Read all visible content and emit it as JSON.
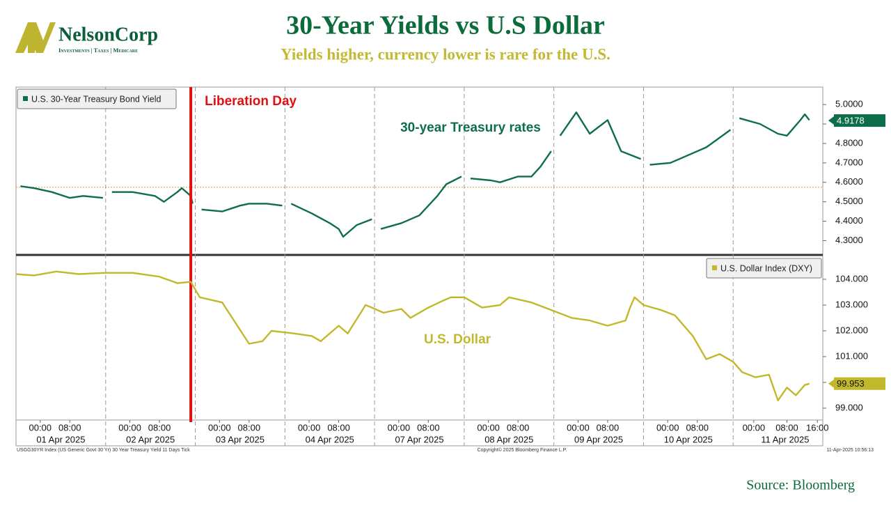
{
  "header": {
    "logo_name": "NelsonCorp",
    "logo_tagline": "Investments | Taxes | Medicare",
    "title": "30-Year Yields vs U.S Dollar",
    "subtitle": "Yields higher, currency lower is rare for the U.S."
  },
  "chart_data": [
    {
      "type": "line",
      "legend": "top-left",
      "annotation": "30-year Treasury rates",
      "event_label": "Liberation Day",
      "event_x": 1.95,
      "reference_line": 4.575,
      "reference_color": "#e0a030",
      "last_value": 4.9178,
      "xlim": [
        0,
        9
      ],
      "ylim": [
        4.23,
        5.09
      ],
      "yticks": [
        {
          "value": 4.3,
          "label": "4.3000"
        },
        {
          "value": 4.4,
          "label": "4.4000"
        },
        {
          "value": 4.5,
          "label": "4.5000"
        },
        {
          "value": 4.6,
          "label": "4.6000"
        },
        {
          "value": 4.7,
          "label": "4.7000"
        },
        {
          "value": 4.8,
          "label": "4.8000"
        },
        {
          "value": 4.9,
          "label": "4.9000"
        },
        {
          "value": 5.0,
          "label": "5.0000"
        }
      ],
      "x": [
        0.05,
        0.2,
        0.4,
        0.6,
        0.75,
        0.97,
        1.02,
        1.07,
        1.3,
        1.55,
        1.65,
        1.8,
        1.85,
        1.95,
        1.97,
        2.02,
        2.07,
        2.3,
        2.5,
        2.6,
        2.8,
        2.97,
        3.02,
        3.07,
        3.3,
        3.5,
        3.6,
        3.65,
        3.8,
        3.97,
        4.02,
        4.07,
        4.3,
        4.5,
        4.7,
        4.8,
        4.97,
        5.02,
        5.07,
        5.3,
        5.4,
        5.6,
        5.75,
        5.85,
        5.97,
        6.02,
        6.07,
        6.25,
        6.4,
        6.6,
        6.75,
        6.97,
        7.02,
        7.07,
        7.3,
        7.5,
        7.7,
        7.85,
        7.97,
        8.02,
        8.07,
        8.3,
        8.5,
        8.6,
        8.75,
        8.8,
        8.85
      ],
      "series": [
        {
          "name": "U.S. 30-Year Treasury Bond Yield",
          "color": "#0f6e4a",
          "values": [
            4.58,
            4.57,
            4.55,
            4.52,
            4.53,
            4.52,
            null,
            4.55,
            4.55,
            4.53,
            4.5,
            4.55,
            4.57,
            4.53,
            4.49,
            null,
            4.46,
            4.45,
            4.48,
            4.49,
            4.49,
            4.48,
            null,
            4.49,
            4.44,
            4.39,
            4.36,
            4.32,
            4.38,
            4.41,
            null,
            4.36,
            4.39,
            4.43,
            4.53,
            4.59,
            4.63,
            null,
            4.62,
            4.61,
            4.6,
            4.63,
            4.63,
            4.68,
            4.76,
            null,
            4.84,
            4.96,
            4.85,
            4.92,
            4.76,
            4.72,
            null,
            4.69,
            4.7,
            4.74,
            4.78,
            4.83,
            4.87,
            null,
            4.93,
            4.9,
            4.85,
            4.84,
            4.92,
            4.95,
            4.92
          ]
        }
      ]
    },
    {
      "type": "line",
      "legend": "top-right",
      "annotation": "U.S. Dollar",
      "last_value": 99.953,
      "xlim": [
        0,
        9
      ],
      "ylim": [
        98.54,
        104.89
      ],
      "yticks": [
        {
          "value": 99,
          "label": "99.000"
        },
        {
          "value": 100,
          "label": "100.000"
        },
        {
          "value": 101,
          "label": "101.000"
        },
        {
          "value": 102,
          "label": "102.000"
        },
        {
          "value": 103,
          "label": "103.000"
        },
        {
          "value": 104,
          "label": "104.000"
        }
      ],
      "day_boundaries": [
        1,
        2,
        3,
        4,
        5,
        6,
        7,
        8
      ],
      "xticks": [
        {
          "value": 0.27,
          "label": "00:00"
        },
        {
          "value": 0.6,
          "label": "08:00"
        },
        {
          "value": 1.27,
          "label": "00:00"
        },
        {
          "value": 1.6,
          "label": "08:00"
        },
        {
          "value": 2.27,
          "label": "00:00"
        },
        {
          "value": 2.6,
          "label": "08:00"
        },
        {
          "value": 3.27,
          "label": "00:00"
        },
        {
          "value": 3.6,
          "label": "08:00"
        },
        {
          "value": 4.27,
          "label": "00:00"
        },
        {
          "value": 4.6,
          "label": "08:00"
        },
        {
          "value": 5.27,
          "label": "00:00"
        },
        {
          "value": 5.6,
          "label": "08:00"
        },
        {
          "value": 6.27,
          "label": "00:00"
        },
        {
          "value": 6.6,
          "label": "08:00"
        },
        {
          "value": 7.27,
          "label": "00:00"
        },
        {
          "value": 7.6,
          "label": "08:00"
        },
        {
          "value": 8.23,
          "label": "00:00"
        },
        {
          "value": 8.6,
          "label": "08:00"
        },
        {
          "value": 8.94,
          "label": "16:00"
        }
      ],
      "day_labels": [
        {
          "value": 0.5,
          "label": "01 Apr 2025"
        },
        {
          "value": 1.5,
          "label": "02 Apr 2025"
        },
        {
          "value": 2.5,
          "label": "03 Apr 2025"
        },
        {
          "value": 3.5,
          "label": "04 Apr 2025"
        },
        {
          "value": 4.5,
          "label": "07 Apr 2025"
        },
        {
          "value": 5.5,
          "label": "08 Apr 2025"
        },
        {
          "value": 6.5,
          "label": "09 Apr 2025"
        },
        {
          "value": 7.5,
          "label": "10 Apr 2025"
        },
        {
          "value": 8.58,
          "label": "11 Apr 2025"
        }
      ],
      "x": [
        0.0,
        0.2,
        0.45,
        0.7,
        1.0,
        1.3,
        1.6,
        1.8,
        1.95,
        2.05,
        2.3,
        2.45,
        2.6,
        2.75,
        2.85,
        3.1,
        3.3,
        3.4,
        3.6,
        3.7,
        3.9,
        3.97,
        4.1,
        4.3,
        4.4,
        4.6,
        4.75,
        4.85,
        5.0,
        5.2,
        5.4,
        5.5,
        5.75,
        5.9,
        6.2,
        6.4,
        6.6,
        6.8,
        6.85,
        6.9,
        7.0,
        7.2,
        7.35,
        7.55,
        7.7,
        7.85,
        8.0,
        8.1,
        8.25,
        8.4,
        8.5,
        8.6,
        8.7,
        8.8,
        8.85
      ],
      "series": [
        {
          "name": "U.S. Dollar Index (DXY)",
          "color": "#c2b82b",
          "values": [
            104.2,
            104.15,
            104.3,
            104.2,
            104.25,
            104.25,
            104.1,
            103.85,
            103.9,
            103.3,
            103.1,
            102.3,
            101.5,
            101.6,
            102.0,
            101.9,
            101.8,
            101.6,
            102.2,
            101.9,
            103.0,
            102.9,
            102.7,
            102.85,
            102.5,
            102.9,
            103.15,
            103.3,
            103.3,
            102.9,
            103.0,
            103.3,
            103.1,
            102.9,
            102.5,
            102.4,
            102.2,
            102.4,
            102.9,
            103.3,
            103.0,
            102.8,
            102.6,
            101.8,
            100.9,
            101.1,
            100.8,
            100.4,
            100.2,
            100.3,
            99.3,
            99.8,
            99.5,
            99.9,
            99.95
          ]
        }
      ]
    }
  ],
  "footer": {
    "index_note": "USGG30YR Index (US Generic Govt 30 Yr) 30 Year Treasury Yield 11 Days  Tick",
    "copyright": "Copyright© 2025 Bloomberg Finance L.P.",
    "timestamp": "11-Apr-2025 10:56:13",
    "source": "Source: Bloomberg"
  }
}
